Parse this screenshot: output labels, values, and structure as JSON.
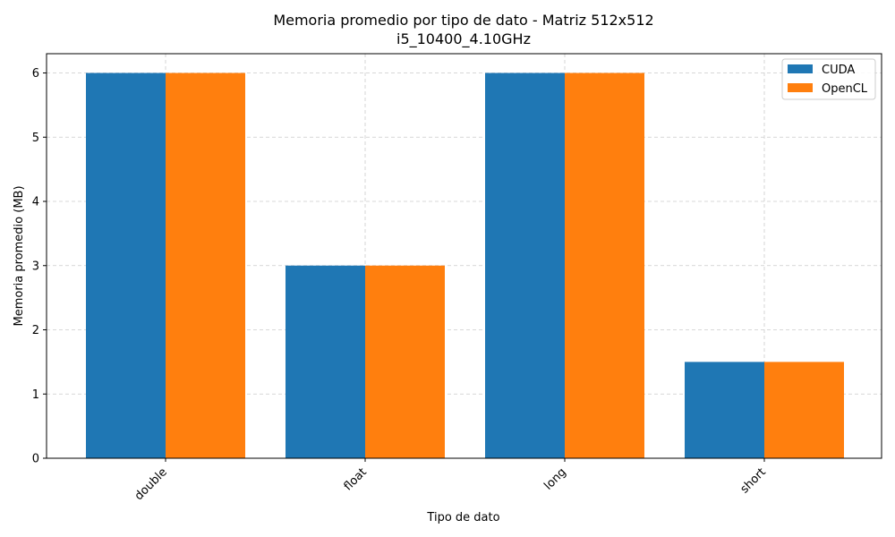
{
  "chart_data": {
    "type": "bar",
    "title": "Memoria promedio por tipo de dato - Matriz 512x512",
    "subtitle": "i5_10400_4.10GHz",
    "xlabel": "Tipo de dato",
    "ylabel": "Memoria promedio (MB)",
    "categories": [
      "double",
      "float",
      "long",
      "short"
    ],
    "series": [
      {
        "name": "CUDA",
        "color": "#1f77b4",
        "values": [
          6,
          3,
          6,
          1.5
        ]
      },
      {
        "name": "OpenCL",
        "color": "#ff7f0e",
        "values": [
          6,
          3,
          6,
          1.5
        ]
      }
    ],
    "ylim": [
      0,
      6.3
    ],
    "yticks": [
      0,
      1,
      2,
      3,
      4,
      5,
      6
    ],
    "grid": true,
    "legend_position": "top-right"
  }
}
